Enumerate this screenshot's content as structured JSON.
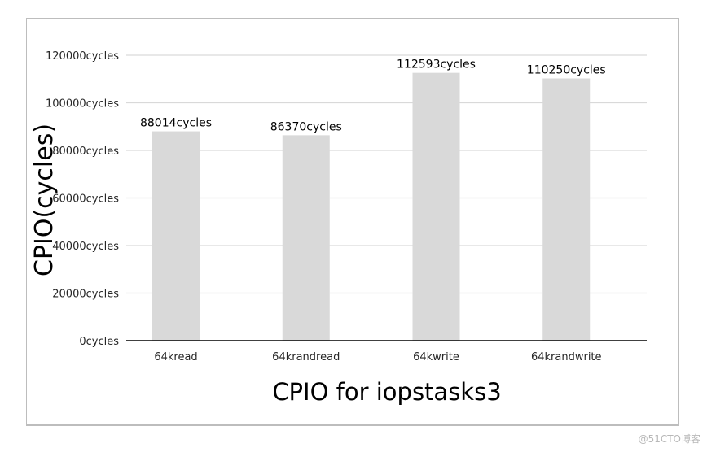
{
  "chart_data": {
    "type": "bar",
    "categories": [
      "64kread",
      "64krandread",
      "64kwrite",
      "64krandwrite"
    ],
    "values": [
      88014,
      86370,
      112593,
      110250
    ],
    "data_labels": [
      "88014cycles",
      "86370cycles",
      "112593cycles",
      "110250cycles"
    ],
    "title": "",
    "xlabel": "CPIO for iopstasks3",
    "ylabel": "CPIO(cycles)",
    "ylim": [
      0,
      120000
    ],
    "yticks": [
      0,
      20000,
      40000,
      60000,
      80000,
      100000,
      120000
    ],
    "ytick_labels": [
      "0cycles",
      "20000cycles",
      "40000cycles",
      "60000cycles",
      "80000cycles",
      "100000cycles",
      "120000cycles"
    ],
    "grid": true,
    "legend": "none",
    "bar_color": "#d9d9d9",
    "grid_color": "#d9d9d9",
    "axis_color": "#000000"
  },
  "watermark": "@51CTO博客"
}
